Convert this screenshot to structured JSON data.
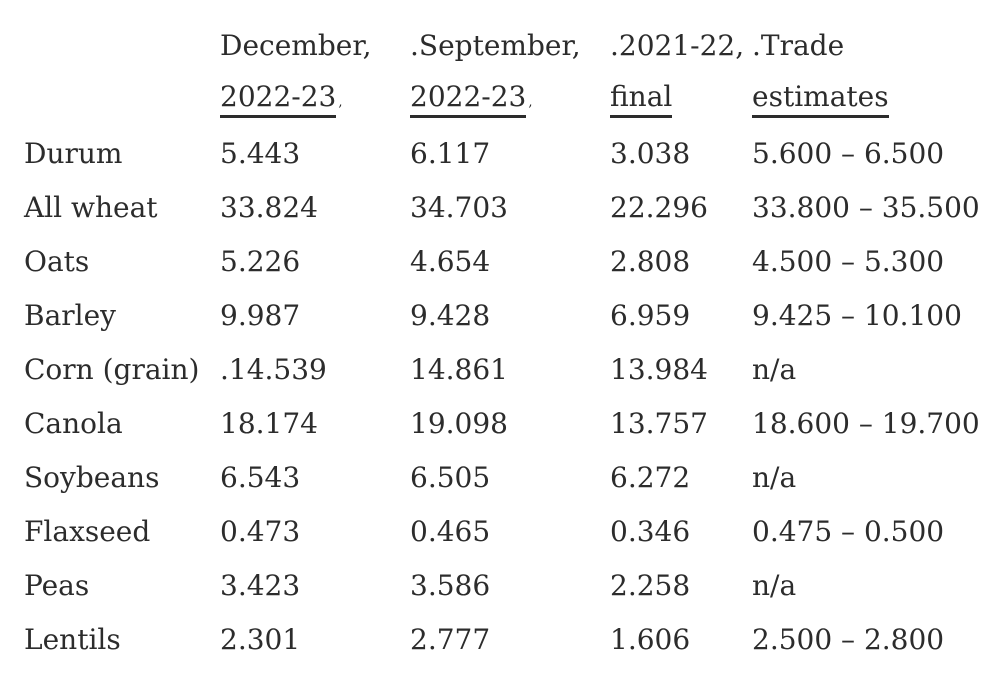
{
  "colors": {
    "background": "#ffffff",
    "text": "#2c2c2c"
  },
  "chart_data": {
    "type": "table",
    "title": "",
    "corner_label": "",
    "header": {
      "cols": [
        {
          "line1": "December,",
          "line2": "2022-23",
          "suffix": ","
        },
        {
          "line1": ".September,",
          "line2": "2022-23",
          "suffix": ","
        },
        {
          "line1": ".2021-22,",
          "line2": "final",
          "suffix": ""
        },
        {
          "line1": ".Trade",
          "line2": "estimates",
          "suffix": ""
        }
      ]
    },
    "rows": [
      {
        "label": "Durum",
        "values": [
          "5.443",
          "6.117",
          "3.038",
          "5.600 – 6.500"
        ]
      },
      {
        "label": "All wheat",
        "values": [
          "33.824",
          "34.703",
          "22.296",
          "33.800 – 35.500"
        ]
      },
      {
        "label": "Oats",
        "values": [
          "5.226",
          "4.654",
          "2.808",
          "4.500 – 5.300"
        ]
      },
      {
        "label": "Barley",
        "values": [
          "9.987",
          "9.428",
          "6.959",
          "9.425 – 10.100"
        ]
      },
      {
        "label": "Corn (grain)",
        "values": [
          ".14.539",
          "14.861",
          "13.984",
          "n/a"
        ]
      },
      {
        "label": "Canola",
        "values": [
          "18.174",
          "19.098",
          "13.757",
          "18.600 – 19.700"
        ]
      },
      {
        "label": "Soybeans",
        "values": [
          "6.543",
          "6.505",
          "6.272",
          "n/a"
        ]
      },
      {
        "label": "Flaxseed",
        "values": [
          "0.473",
          "0.465",
          "0.346",
          "0.475 – 0.500"
        ]
      },
      {
        "label": "Peas",
        "values": [
          "3.423",
          "3.586",
          "2.258",
          "n/a"
        ]
      },
      {
        "label": "Lentils",
        "values": [
          "2.301",
          "2.777",
          "1.606",
          "2.500 – 2.800"
        ]
      }
    ]
  }
}
